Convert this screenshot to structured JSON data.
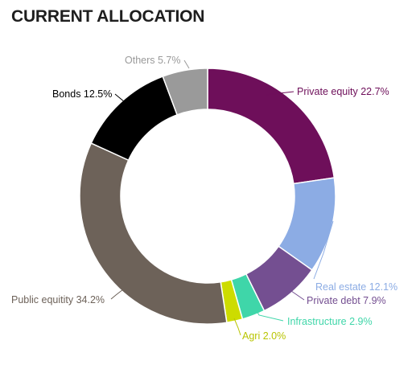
{
  "title": "CURRENT ALLOCATION",
  "chart_data": {
    "type": "pie",
    "title": "CURRENT ALLOCATION",
    "slices": [
      {
        "label": "Private equity",
        "value": 22.7,
        "display": "Private equity 22.7%",
        "color": "#6e0f5a"
      },
      {
        "label": "Real estate",
        "value": 12.1,
        "display": "Real estate 12.1%",
        "color": "#8cace4"
      },
      {
        "label": "Private debt",
        "value": 7.9,
        "display": "Private debt 7.9%",
        "color": "#744f91"
      },
      {
        "label": "Infrastructure",
        "value": 2.9,
        "display": "Infrastructure 2.9%",
        "color": "#3fd6a9"
      },
      {
        "label": "Agri",
        "value": 2.0,
        "display": "Agri 2.0%",
        "color": "#cddc00"
      },
      {
        "label": "Public equitity",
        "value": 34.2,
        "display": "Public equitity 34.2%",
        "color": "#6d6259"
      },
      {
        "label": "Bonds",
        "value": 12.5,
        "display": "Bonds 12.5%",
        "color": "#000000"
      },
      {
        "label": "Others",
        "value": 5.7,
        "display": "Others 5.7%",
        "color": "#9a9a9a"
      }
    ]
  }
}
